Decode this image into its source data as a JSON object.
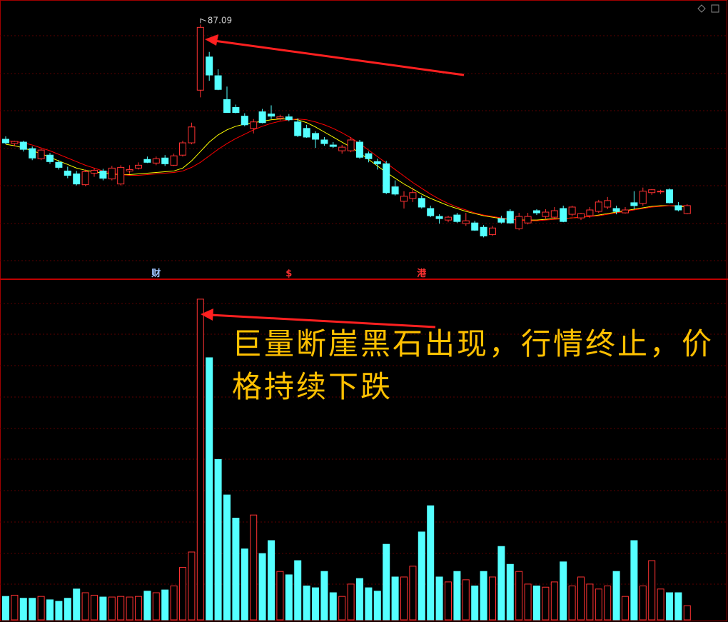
{
  "chart_data": [
    {
      "type": "candlestick",
      "up_color": "#ff3232",
      "down_color": "#54ffff",
      "ylim": [
        52,
        90
      ],
      "candles": [
        [
          71.2,
          71.6,
          70.5,
          70.7
        ],
        [
          70.6,
          71.0,
          70.2,
          70.9
        ],
        [
          70.8,
          71.0,
          69.5,
          69.8
        ],
        [
          69.9,
          70.2,
          68.3,
          68.6
        ],
        [
          68.5,
          69.9,
          68.3,
          69.7
        ],
        [
          69.0,
          69.3,
          67.8,
          68.1
        ],
        [
          68.0,
          68.3,
          67.0,
          67.3
        ],
        [
          66.8,
          67.4,
          65.8,
          66.2
        ],
        [
          66.4,
          66.8,
          64.8,
          65.0
        ],
        [
          64.9,
          67.0,
          64.7,
          66.7
        ],
        [
          66.5,
          67.2,
          66.0,
          66.9
        ],
        [
          66.8,
          67.1,
          65.5,
          65.8
        ],
        [
          65.7,
          67.5,
          65.5,
          67.2
        ],
        [
          65.0,
          67.6,
          64.8,
          67.3
        ],
        [
          66.8,
          67.6,
          66.4,
          67.0
        ],
        [
          67.2,
          68.0,
          67.0,
          67.6
        ],
        [
          68.4,
          68.8,
          67.9,
          68.0
        ],
        [
          67.9,
          68.8,
          67.6,
          68.5
        ],
        [
          68.6,
          69.0,
          67.5,
          67.8
        ],
        [
          67.6,
          69.2,
          67.5,
          68.9
        ],
        [
          69.0,
          71.0,
          68.8,
          70.7
        ],
        [
          70.7,
          73.5,
          70.5,
          72.9
        ],
        [
          78.0,
          87.09,
          77.0,
          86.7
        ],
        [
          82.6,
          83.3,
          79.3,
          80.1
        ],
        [
          80.0,
          80.9,
          78.0,
          78.1
        ],
        [
          76.7,
          78.5,
          74.9,
          74.9
        ],
        [
          75.6,
          76.0,
          74.8,
          74.9
        ],
        [
          74.4,
          74.8,
          73.0,
          73.2
        ],
        [
          72.7,
          74.0,
          72.0,
          73.6
        ],
        [
          75.0,
          75.4,
          73.4,
          73.5
        ],
        [
          74.7,
          75.9,
          74.0,
          74.4
        ],
        [
          74.1,
          74.6,
          73.8,
          74.3
        ],
        [
          74.3,
          74.7,
          73.7,
          73.9
        ],
        [
          73.6,
          74.1,
          71.5,
          71.7
        ],
        [
          72.7,
          73.2,
          71.4,
          71.5
        ],
        [
          72.0,
          72.3,
          70.0,
          71.2
        ],
        [
          71.1,
          71.5,
          70.3,
          70.6
        ],
        [
          70.4,
          70.8,
          70.0,
          70.2
        ],
        [
          69.6,
          70.4,
          69.2,
          70.1
        ],
        [
          69.6,
          71.5,
          69.4,
          71.1
        ],
        [
          70.8,
          71.1,
          68.5,
          68.7
        ],
        [
          69.2,
          69.5,
          68.0,
          68.5
        ],
        [
          68.1,
          68.5,
          67.0,
          67.8
        ],
        [
          67.8,
          68.2,
          63.6,
          63.8
        ],
        [
          64.6,
          65.5,
          63.4,
          63.6
        ],
        [
          62.6,
          64.0,
          61.6,
          63.3
        ],
        [
          63.0,
          64.5,
          62.5,
          63.8
        ],
        [
          63.0,
          63.4,
          61.6,
          61.8
        ],
        [
          61.6,
          62.0,
          60.4,
          60.6
        ],
        [
          60.5,
          60.8,
          59.5,
          60.2
        ],
        [
          60.0,
          60.6,
          59.7,
          60.4
        ],
        [
          60.7,
          61.0,
          59.6,
          59.8
        ],
        [
          59.5,
          61.0,
          59.2,
          59.9
        ],
        [
          59.6,
          59.9,
          58.5,
          58.6
        ],
        [
          59.0,
          59.3,
          57.6,
          57.8
        ],
        [
          58.0,
          59.2,
          57.8,
          58.9
        ],
        [
          60.2,
          60.6,
          59.5,
          59.7
        ],
        [
          61.2,
          61.5,
          59.5,
          59.6
        ],
        [
          58.8,
          61.0,
          58.6,
          60.5
        ],
        [
          59.6,
          61.0,
          59.4,
          60.5
        ],
        [
          61.3,
          61.5,
          60.7,
          61.0
        ],
        [
          60.5,
          61.5,
          60.2,
          61.1
        ],
        [
          60.4,
          61.8,
          60.2,
          61.3
        ],
        [
          61.6,
          62.0,
          59.7,
          59.8
        ],
        [
          60.8,
          62.0,
          60.5,
          61.8
        ],
        [
          60.3,
          61.0,
          60.0,
          60.9
        ],
        [
          60.6,
          61.8,
          60.3,
          61.4
        ],
        [
          61.2,
          62.8,
          61.0,
          62.5
        ],
        [
          61.8,
          63.2,
          61.5,
          62.7
        ],
        [
          61.6,
          62.0,
          60.8,
          61.2
        ],
        [
          61.0,
          61.8,
          60.9,
          61.4
        ],
        [
          62.4,
          64.0,
          61.5,
          62.0
        ],
        [
          62.3,
          64.5,
          62.0,
          64.0
        ],
        [
          63.8,
          64.3,
          63.5,
          64.2
        ],
        [
          63.9,
          64.2,
          63.6,
          64.0
        ],
        [
          64.2,
          64.4,
          62.3,
          62.4
        ],
        [
          62.0,
          62.5,
          61.2,
          61.4
        ],
        [
          60.9,
          62.2,
          60.8,
          62.0
        ]
      ],
      "series": [
        {
          "color": "#ffff00",
          "values": [
            70.5,
            70.3,
            70.0,
            69.6,
            69.2,
            68.7,
            68.2,
            67.7,
            67.2,
            66.9,
            66.7,
            66.5,
            66.4,
            66.3,
            66.3,
            66.4,
            66.5,
            66.6,
            66.7,
            66.8,
            67.2,
            68.2,
            69.5,
            70.8,
            71.8,
            72.5,
            73.0,
            73.3,
            73.5,
            73.7,
            73.9,
            74.0,
            74.0,
            73.9,
            73.5,
            72.9,
            72.2,
            71.5,
            70.8,
            70.1,
            69.3,
            68.4,
            67.5,
            66.6,
            65.8,
            65.0,
            64.3,
            63.6,
            63.0,
            62.5,
            62.0,
            61.6,
            61.2,
            60.9,
            60.6,
            60.4,
            60.2,
            60.1,
            60.0,
            60.0,
            60.0,
            60.1,
            60.2,
            60.2,
            60.3,
            60.4,
            60.5,
            60.7,
            60.9,
            61.1,
            61.3,
            61.5,
            61.7,
            61.9,
            62.0,
            62.0,
            61.9,
            61.8
          ]
        },
        {
          "color": "#ff0000",
          "values": [
            71.0,
            70.9,
            70.7,
            70.4,
            70.0,
            69.6,
            69.1,
            68.6,
            68.1,
            67.6,
            67.2,
            66.8,
            66.5,
            66.3,
            66.2,
            66.2,
            66.3,
            66.4,
            66.5,
            66.6,
            66.8,
            67.3,
            68.0,
            68.9,
            69.8,
            70.6,
            71.3,
            71.9,
            72.5,
            73.0,
            73.4,
            73.7,
            73.9,
            74.0,
            73.9,
            73.6,
            73.2,
            72.7,
            72.1,
            71.4,
            70.6,
            69.7,
            68.8,
            67.9,
            67.0,
            66.1,
            65.2,
            64.4,
            63.6,
            62.9,
            62.3,
            61.8,
            61.4,
            61.0,
            60.7,
            60.5,
            60.3,
            60.1,
            60.0,
            59.9,
            59.9,
            60.0,
            60.1,
            60.2,
            60.3,
            60.4,
            60.5,
            60.6,
            60.8,
            61.0,
            61.2,
            61.4,
            61.6,
            61.8,
            61.9,
            62.0,
            62.0,
            62.0
          ]
        }
      ],
      "markers": [
        {
          "at": 17,
          "label": "财",
          "color": "#9ec4ff"
        },
        {
          "at": 32,
          "label": "$",
          "color": "#ff3232"
        },
        {
          "at": 47,
          "label": "港",
          "color": "#ff3232"
        }
      ]
    },
    {
      "type": "bar",
      "ylim": [
        0,
        110
      ],
      "values": [
        7.6,
        8,
        7,
        7,
        7.6,
        6.5,
        6,
        7,
        10,
        8.8,
        8,
        7.4,
        7.4,
        7.6,
        7.4,
        7.6,
        9.3,
        8.8,
        9.7,
        11,
        17,
        22,
        104,
        85,
        52,
        40.5,
        33,
        23,
        34,
        21.5,
        25.7,
        15.7,
        14.6,
        19.2,
        11,
        10.4,
        15.7,
        8.8,
        7.6,
        11.6,
        13.4,
        10.4,
        9.3,
        24.5,
        13.9,
        13.9,
        17.4,
        28.5,
        37,
        13.9,
        12.3,
        15.7,
        13,
        11,
        15.7,
        13.9,
        23.8,
        18,
        15.7,
        11.6,
        11,
        10.6,
        12.3,
        18.8,
        11,
        13.9,
        11.6,
        10,
        11,
        15.7,
        7.6,
        25.7,
        11,
        19.2,
        10,
        8.8,
        8.8,
        4.6
      ],
      "annotation": "巨量断崖黑石出现，行情终止，价格持续下跌"
    }
  ]
}
